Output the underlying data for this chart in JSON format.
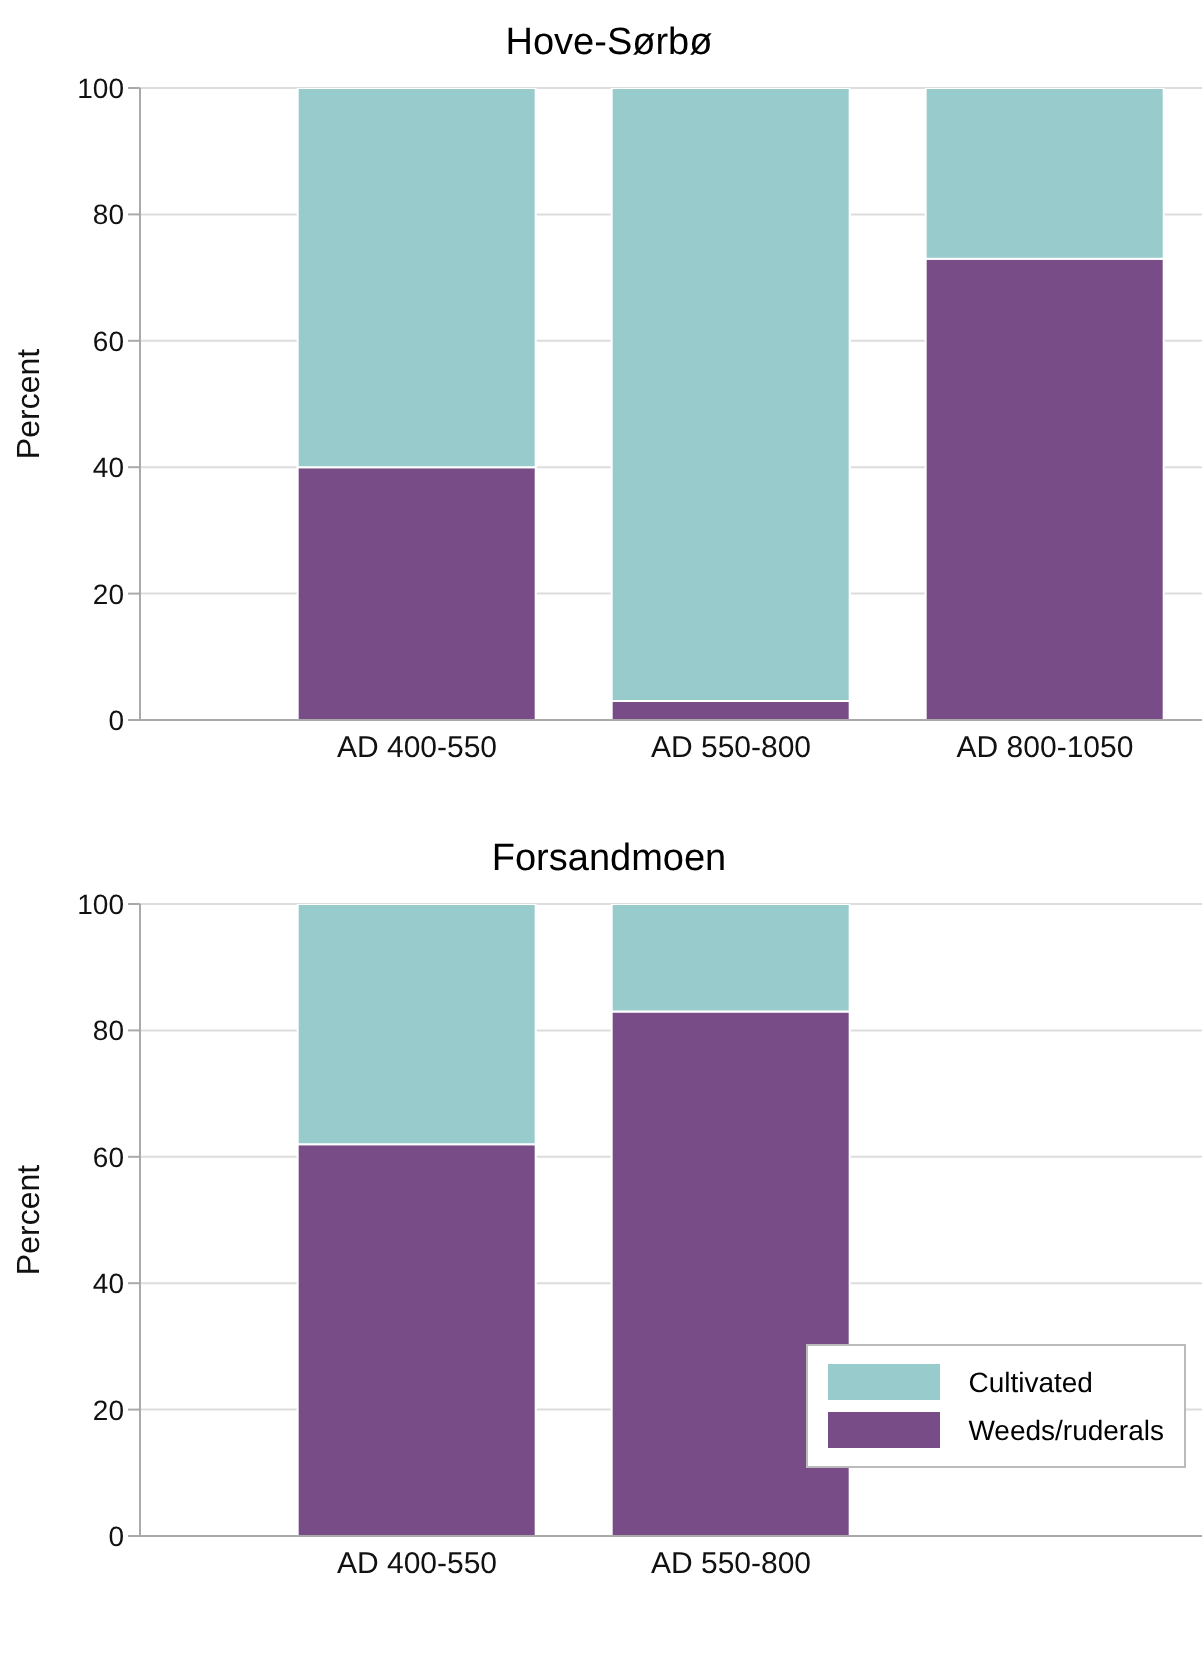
{
  "chart_data": [
    {
      "type": "bar",
      "title": "Hove-Sørbø",
      "ylabel": "Percent",
      "categories": [
        "AD 400-550",
        "AD 550-800",
        "AD 800-1050"
      ],
      "stacked": true,
      "ylim": [
        0,
        100
      ],
      "yticks": [
        0,
        20,
        40,
        60,
        80,
        100
      ],
      "grid": "y",
      "legend": false,
      "series": [
        {
          "color": "#774c87",
          "values": [
            40,
            3,
            73
          ]
        },
        {
          "color": "#98cbcc",
          "values": [
            60,
            97,
            27
          ]
        }
      ]
    },
    {
      "type": "bar",
      "title": "Forsandmoen",
      "ylabel": "Percent",
      "categories": [
        "AD 400-550",
        "AD 550-800",
        null
      ],
      "stacked": true,
      "ylim": [
        0,
        100
      ],
      "yticks": [
        0,
        20,
        40,
        60,
        80,
        100
      ],
      "grid": "y",
      "legend": "bottom right",
      "series": [
        {
          "name": "Weeds/ruderals",
          "color": "#774c87",
          "values": [
            62,
            83,
            null
          ]
        },
        {
          "name": "Cultivated",
          "color": "#98cbcc",
          "values": [
            38,
            17,
            null
          ]
        }
      ]
    }
  ]
}
